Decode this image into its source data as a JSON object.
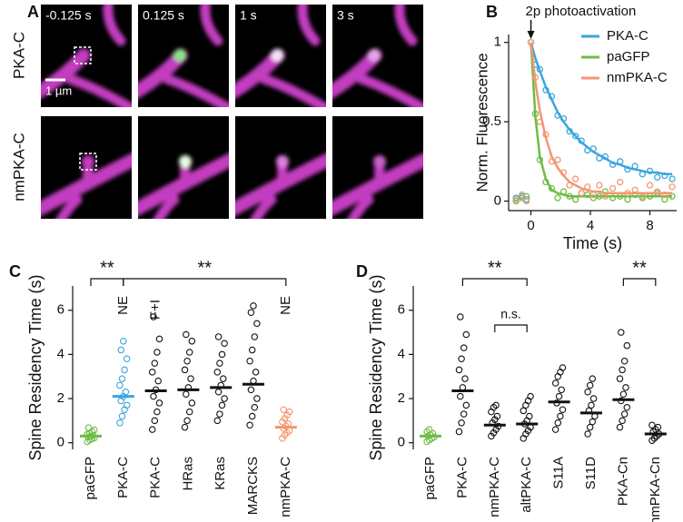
{
  "panel_a": {
    "label": "A",
    "rows": [
      "PKA-C",
      "nmPKA-C"
    ],
    "times": [
      "-0.125 s",
      "0.125 s",
      "1 s",
      "3 s"
    ],
    "scale_bar": "1 µm"
  },
  "chart_data": [
    {
      "type": "scatter",
      "label": "B",
      "title": "2p photoactivation",
      "xlabel": "Time (s)",
      "ylabel": "Norm. Fluorescence",
      "xlim": [
        -1.5,
        9.8
      ],
      "ylim": [
        -0.06,
        1.05
      ],
      "xticks": [
        0,
        4,
        8
      ],
      "yticks": [
        0,
        0.5,
        1
      ],
      "legend": "upper right",
      "x": [
        -1,
        -0.6,
        -0.3,
        0,
        0.3,
        0.6,
        1,
        1.4,
        1.8,
        2.2,
        2.6,
        3,
        3.4,
        3.8,
        4.2,
        4.6,
        5,
        5.5,
        6,
        6.5,
        7,
        7.5,
        8,
        8.5,
        9,
        9.5
      ],
      "series": [
        {
          "name": "PKA-C",
          "color": "#3aa6de",
          "values": [
            0.02,
            0.03,
            0.01,
            1.0,
            0.86,
            0.83,
            0.7,
            0.66,
            0.54,
            0.52,
            0.44,
            0.41,
            0.38,
            0.32,
            0.33,
            0.27,
            0.28,
            0.23,
            0.25,
            0.2,
            0.22,
            0.17,
            0.19,
            0.15,
            0.16,
            0.14
          ],
          "fit": [
            null,
            null,
            null,
            1,
            0.9,
            0.82,
            0.72,
            0.64,
            0.56,
            0.5,
            0.45,
            0.41,
            0.37,
            0.34,
            0.31,
            0.29,
            0.27,
            0.24,
            0.23,
            0.21,
            0.2,
            0.19,
            0.18,
            0.18,
            0.17,
            0.17
          ]
        },
        {
          "name": "paGFP",
          "color": "#6cbd45",
          "values": [
            0.0,
            0.02,
            0.03,
            1.0,
            0.55,
            0.26,
            0.12,
            0.08,
            0.02,
            0.06,
            0.03,
            0.01,
            0.05,
            0.04,
            0.02,
            0.03,
            0.06,
            0.02,
            0.03,
            0.01,
            0.04,
            0.02,
            0.03,
            0.05,
            0.01,
            0.03
          ],
          "fit": [
            null,
            null,
            null,
            1,
            0.53,
            0.28,
            0.14,
            0.07,
            0.05,
            0.04,
            0.03,
            0.03,
            0.03,
            0.03,
            0.03,
            0.03,
            0.03,
            0.03,
            0.03,
            0.03,
            0.03,
            0.03,
            0.03,
            0.03,
            0.03,
            0.03
          ]
        },
        {
          "name": "nmPKA-C",
          "color": "#f39670",
          "values": [
            0.01,
            0.04,
            0.0,
            1.0,
            0.78,
            0.5,
            0.42,
            0.25,
            0.26,
            0.18,
            0.1,
            0.14,
            0.05,
            0.09,
            0.04,
            0.1,
            0.03,
            0.08,
            0.12,
            0.05,
            0.07,
            0.03,
            0.1,
            0.06,
            0.04,
            0.09
          ],
          "fit": [
            null,
            null,
            null,
            1,
            0.75,
            0.57,
            0.4,
            0.28,
            0.21,
            0.16,
            0.12,
            0.1,
            0.08,
            0.07,
            0.06,
            0.06,
            0.05,
            0.05,
            0.05,
            0.05,
            0.05,
            0.05,
            0.05,
            0.05,
            0.05,
            0.05
          ]
        }
      ]
    },
    {
      "type": "strip",
      "label": "C",
      "ylabel": "Spine Residency Time (s)",
      "ylim": [
        -0.3,
        7.1
      ],
      "yticks": [
        0,
        2,
        4,
        6
      ],
      "groups": [
        {
          "name": "paGFP",
          "color": "#6cbd45",
          "mean": 0.3,
          "points": [
            0.05,
            0.12,
            0.18,
            0.22,
            0.25,
            0.3,
            0.33,
            0.38,
            0.42,
            0.5,
            0.58,
            0.68
          ]
        },
        {
          "name": "PKA-C",
          "color": "#3aa6de",
          "mean": 2.1,
          "points": [
            0.9,
            1.2,
            1.5,
            1.7,
            1.9,
            2.1,
            2.3,
            2.6,
            2.9,
            3.3,
            3.8,
            4.2,
            4.6
          ]
        },
        {
          "name": "PKA-C",
          "color": "#111111",
          "mean": 2.35,
          "points": [
            0.6,
            1.0,
            1.4,
            1.8,
            2.1,
            2.4,
            2.8,
            3.2,
            3.6,
            4.1,
            4.7,
            5.7
          ]
        },
        {
          "name": "HRas",
          "color": "#111111",
          "mean": 2.4,
          "points": [
            0.7,
            1.0,
            1.4,
            1.8,
            2.2,
            2.5,
            2.9,
            3.3,
            3.7,
            4.1,
            4.6,
            4.9
          ]
        },
        {
          "name": "KRas",
          "color": "#111111",
          "mean": 2.5,
          "points": [
            1.0,
            1.3,
            1.7,
            2.0,
            2.3,
            2.6,
            2.9,
            3.2,
            3.6,
            4.0,
            4.5,
            4.8
          ]
        },
        {
          "name": "MARCKS",
          "color": "#111111",
          "mean": 2.65,
          "points": [
            0.8,
            1.2,
            1.6,
            2.0,
            2.4,
            2.8,
            3.2,
            3.7,
            4.2,
            4.8,
            5.4,
            5.9,
            6.2
          ]
        },
        {
          "name": "nmPKA-C",
          "color": "#f39670",
          "mean": 0.7,
          "points": [
            0.2,
            0.35,
            0.45,
            0.55,
            0.65,
            0.75,
            0.85,
            0.95,
            1.1,
            1.25,
            1.4,
            1.5
          ]
        }
      ],
      "annotations": [
        "**",
        "**",
        "NE",
        "F+I",
        "NE"
      ]
    },
    {
      "type": "strip",
      "label": "D",
      "ylabel": "Spine Residency Time (s)",
      "ylim": [
        -0.3,
        7.1
      ],
      "yticks": [
        0,
        2,
        4,
        6
      ],
      "groups": [
        {
          "name": "paGFP",
          "color": "#6cbd45",
          "mean": 0.3,
          "points": [
            0.05,
            0.12,
            0.2,
            0.25,
            0.3,
            0.35,
            0.42,
            0.5,
            0.6
          ]
        },
        {
          "name": "PKA-C",
          "color": "#111111",
          "mean": 2.35,
          "points": [
            0.5,
            0.9,
            1.3,
            1.7,
            2.1,
            2.5,
            2.9,
            3.3,
            3.8,
            4.3,
            4.9,
            5.7
          ]
        },
        {
          "name": "nmPKA-C",
          "color": "#111111",
          "mean": 0.8,
          "points": [
            0.3,
            0.45,
            0.6,
            0.75,
            0.9,
            1.05,
            1.2,
            1.4,
            1.6,
            1.7
          ]
        },
        {
          "name": "altPKA-C",
          "color": "#111111",
          "mean": 0.85,
          "points": [
            0.2,
            0.4,
            0.55,
            0.7,
            0.85,
            1.0,
            1.2,
            1.45,
            1.7,
            1.9,
            2.1
          ]
        },
        {
          "name": "S11A",
          "color": "#111111",
          "mean": 1.85,
          "points": [
            0.6,
            0.9,
            1.2,
            1.5,
            1.8,
            2.1,
            2.4,
            2.7,
            3.0,
            3.2,
            3.4
          ]
        },
        {
          "name": "S11D",
          "color": "#111111",
          "mean": 1.35,
          "points": [
            0.4,
            0.7,
            0.95,
            1.2,
            1.45,
            1.7,
            2.0,
            2.3,
            2.6,
            2.9
          ]
        },
        {
          "name": "PKA-Cn",
          "color": "#111111",
          "mean": 1.95,
          "points": [
            0.7,
            1.0,
            1.3,
            1.6,
            1.9,
            2.2,
            2.5,
            2.9,
            3.3,
            3.7,
            4.4,
            5.0
          ]
        },
        {
          "name": "nmPKA-Cn",
          "color": "#111111",
          "mean": 0.4,
          "points": [
            0.1,
            0.2,
            0.3,
            0.4,
            0.5,
            0.6,
            0.7,
            0.8
          ]
        }
      ],
      "annotations": [
        "**",
        "n.s.",
        "**"
      ]
    }
  ]
}
